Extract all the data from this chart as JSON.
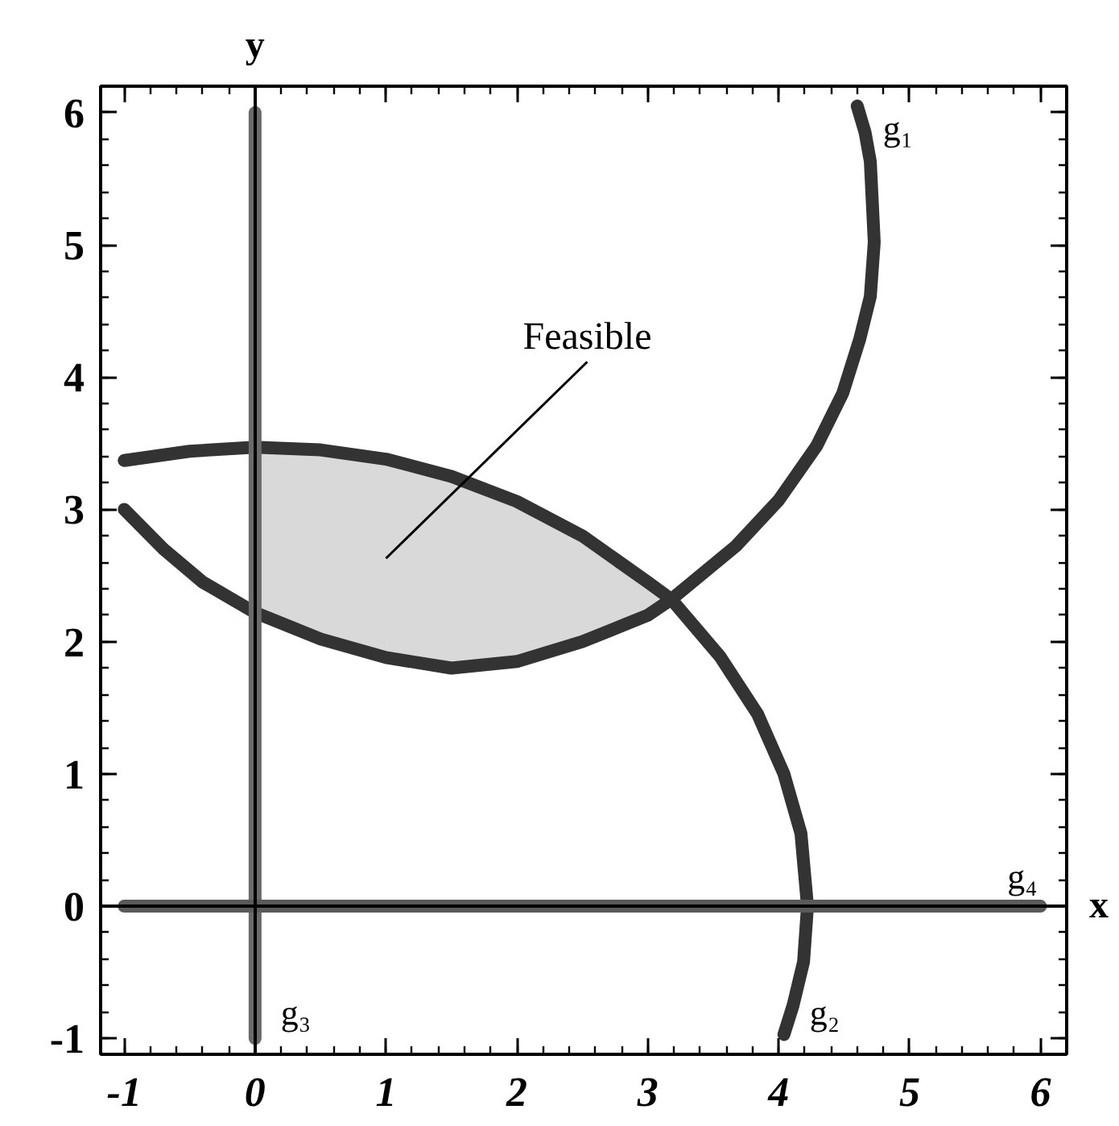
{
  "chart_data": {
    "type": "line",
    "xlabel": "x",
    "ylabel": "y",
    "xlim": [
      -1.18,
      6.2
    ],
    "ylim": [
      -1.12,
      6.2
    ],
    "xticks": [
      -1,
      0,
      1,
      2,
      3,
      4,
      5,
      6
    ],
    "yticks": [
      -1,
      0,
      1,
      2,
      3,
      4,
      5,
      6
    ],
    "annotations": [
      "Feasible"
    ],
    "series": [
      {
        "color": "#d9d9d9",
        "x": [
          0,
          0.5,
          1,
          1.5,
          2,
          2.5,
          3,
          3.18
        ],
        "values": [
          null,
          null,
          null,
          null,
          null,
          null,
          null,
          null
        ],
        "lower": [
          2.22,
          2.02,
          1.88,
          1.8,
          1.85,
          2.0,
          2.2,
          2.32
        ],
        "upper": [
          3.47,
          3.45,
          3.38,
          3.25,
          3.06,
          2.8,
          2.45,
          2.32
        ]
      },
      {
        "name": "g₁",
        "color": "#333333",
        "x": [
          -1,
          -0.7,
          -0.4,
          0,
          0.5,
          1,
          1.5,
          2,
          2.5,
          3,
          3.18,
          3.67,
          4.0,
          4.29,
          4.49,
          4.62,
          4.7,
          4.73,
          4.7,
          4.66,
          4.6
        ],
        "values": [
          3.0,
          2.7,
          2.45,
          2.22,
          2.02,
          1.88,
          1.8,
          1.85,
          2.0,
          2.2,
          2.32,
          2.72,
          3.07,
          3.48,
          3.88,
          4.29,
          4.61,
          5.02,
          5.63,
          5.85,
          6.05
        ]
      },
      {
        "name": "g₂",
        "color": "#333333",
        "x": [
          -1,
          -0.5,
          0,
          0.5,
          1,
          1.5,
          2,
          2.5,
          3,
          3.18,
          3.55,
          3.84,
          4.04,
          4.17,
          4.22,
          4.19,
          4.11,
          4.04
        ],
        "values": [
          3.37,
          3.44,
          3.47,
          3.45,
          3.38,
          3.25,
          3.06,
          2.8,
          2.45,
          2.32,
          1.89,
          1.45,
          1.0,
          0.55,
          0,
          -0.42,
          -0.75,
          -0.97
        ]
      },
      {
        "name": "g₃",
        "color": "#6a6a6a",
        "x": [
          0,
          0
        ],
        "values": [
          6,
          -1
        ]
      },
      {
        "name": "g₄",
        "color": "#5a5a5a",
        "x": [
          -1,
          6
        ],
        "values": [
          0,
          0
        ]
      }
    ]
  }
}
